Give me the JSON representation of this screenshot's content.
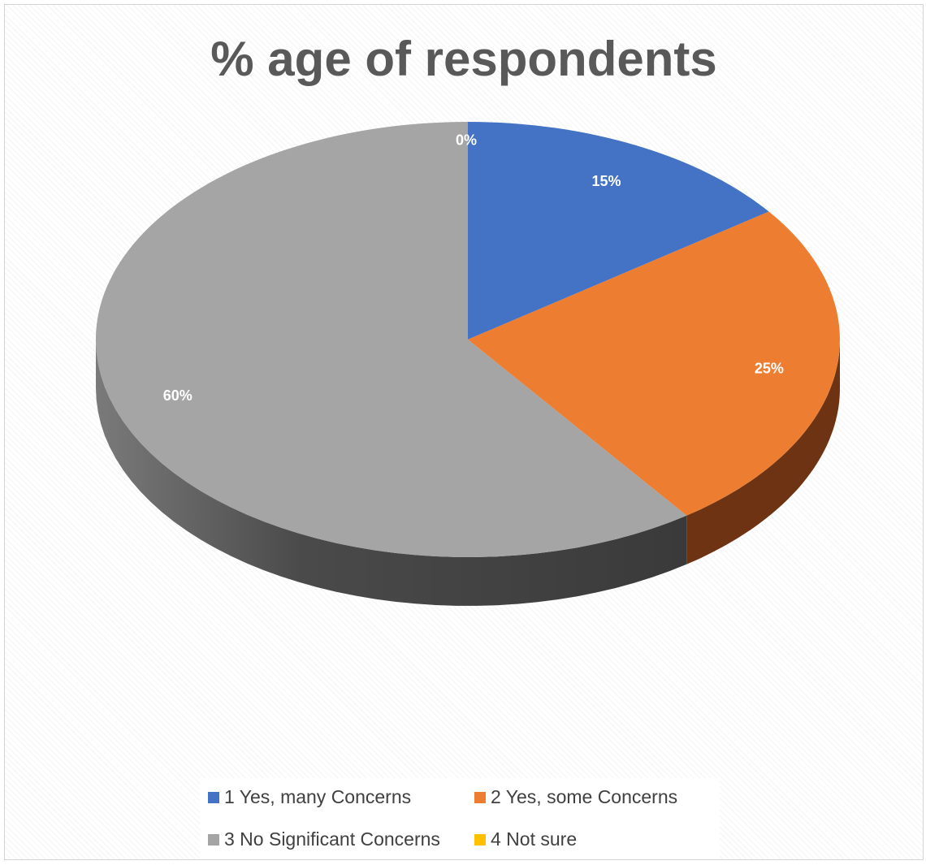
{
  "chart_data": {
    "type": "pie",
    "title": "% age of respondents",
    "categories": [
      "1 Yes, many Concerns",
      "2 Yes, some Concerns",
      "3 No Significant Concerns",
      "4 Not sure"
    ],
    "values": [
      15,
      25,
      60,
      0
    ],
    "labels": [
      "15%",
      "25%",
      "60%",
      "0%"
    ],
    "colors": [
      "#4472c4",
      "#ed7d31",
      "#a5a5a5",
      "#ffc000"
    ],
    "side_colors": [
      "#2f528f",
      "#6e3312",
      "#474747",
      "#7f6000"
    ],
    "style": "3d",
    "legend_position": "bottom"
  }
}
